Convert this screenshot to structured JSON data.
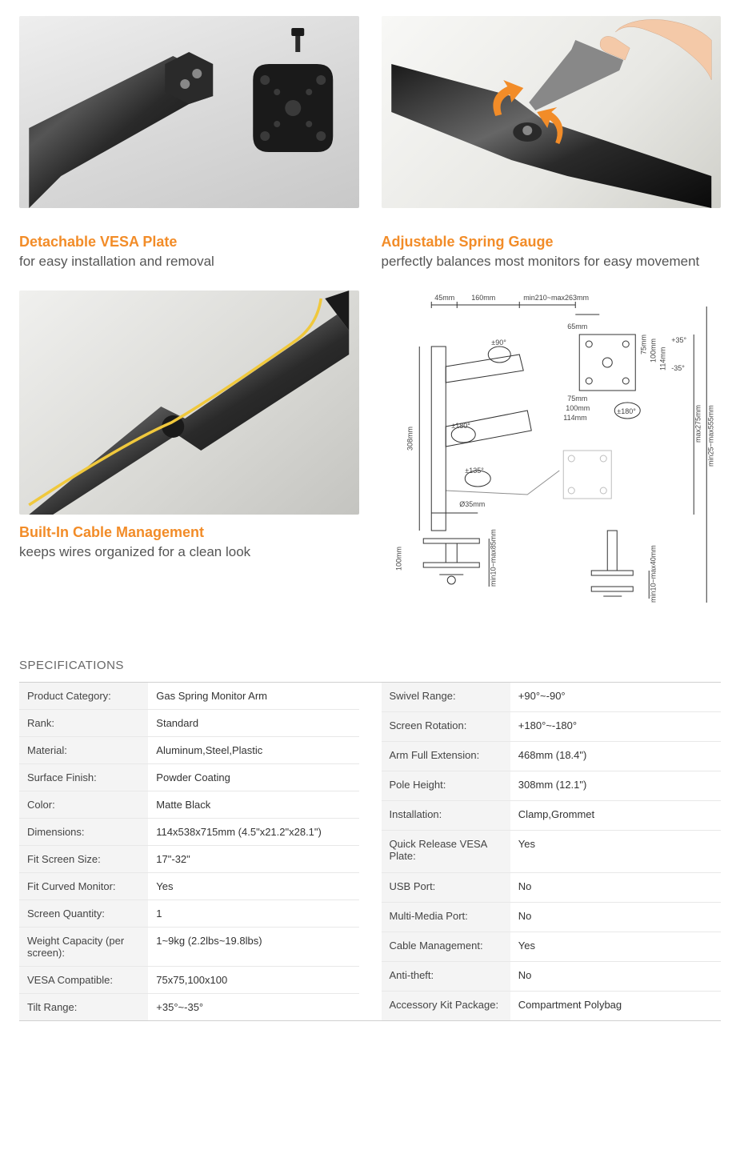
{
  "colors": {
    "accent": "#f28c28",
    "text": "#333333",
    "sub": "#555555",
    "border": "#d0d0d0",
    "row_border": "#e8e8e8",
    "label_bg": "#f4f4f4"
  },
  "features": {
    "vesa": {
      "title": "Detachable VESA Plate",
      "sub": "for easy installation and removal"
    },
    "spring": {
      "title": "Adjustable Spring Gauge",
      "sub": "perfectly balances most monitors for easy movement"
    },
    "cable": {
      "title": "Built-In Cable Management",
      "sub": "keeps wires organized for a clean look"
    }
  },
  "diagram": {
    "dims": {
      "d1": "45mm",
      "d2": "160mm",
      "d3": "min210~max263mm",
      "d4": "65mm",
      "a1": "±90°",
      "a2": "±180°",
      "a3": "±135°",
      "a4": "±180°",
      "t1": "+35°",
      "t2": "-35°",
      "v1": "75mm",
      "v2": "100mm",
      "v3": "114mm",
      "vh1": "75mm",
      "vh2": "100mm",
      "vh3": "114mm",
      "pole": "308mm",
      "clamp_h": "100mm",
      "clamp_range": "min10~max85mm",
      "grommet_range": "min10~max40mm",
      "diameter": "Ø35mm",
      "side1": "max275mm",
      "side2": "min25~max555mm"
    }
  },
  "specs": {
    "title": "SPECIFICATIONS",
    "left": [
      {
        "k": "Product Category:",
        "v": "Gas Spring Monitor Arm"
      },
      {
        "k": "Rank:",
        "v": "Standard"
      },
      {
        "k": "Material:",
        "v": "Aluminum,Steel,Plastic"
      },
      {
        "k": "Surface Finish:",
        "v": "Powder Coating"
      },
      {
        "k": "Color:",
        "v": "Matte Black"
      },
      {
        "k": "Dimensions:",
        "v": "114x538x715mm (4.5\"x21.2\"x28.1\")"
      },
      {
        "k": "Fit Screen Size:",
        "v": "17\"-32\""
      },
      {
        "k": "Fit Curved Monitor:",
        "v": "Yes"
      },
      {
        "k": "Screen Quantity:",
        "v": "1"
      },
      {
        "k": "Weight Capacity (per screen):",
        "v": "1~9kg (2.2lbs~19.8lbs)"
      },
      {
        "k": "VESA Compatible:",
        "v": "75x75,100x100"
      },
      {
        "k": "Tilt Range:",
        "v": "+35°~-35°"
      }
    ],
    "right": [
      {
        "k": "Swivel Range:",
        "v": "+90°~-90°"
      },
      {
        "k": "Screen Rotation:",
        "v": "+180°~-180°"
      },
      {
        "k": "Arm Full Extension:",
        "v": "468mm (18.4\")"
      },
      {
        "k": "Pole Height:",
        "v": "308mm (12.1\")"
      },
      {
        "k": "Installation:",
        "v": "Clamp,Grommet"
      },
      {
        "k": "Quick Release VESA Plate:",
        "v": "Yes"
      },
      {
        "k": "USB Port:",
        "v": "No"
      },
      {
        "k": "Multi-Media Port:",
        "v": "No"
      },
      {
        "k": "Cable Management:",
        "v": "Yes"
      },
      {
        "k": "Anti-theft:",
        "v": "No"
      },
      {
        "k": "Accessory Kit Package:",
        "v": "Compartment Polybag"
      }
    ]
  }
}
